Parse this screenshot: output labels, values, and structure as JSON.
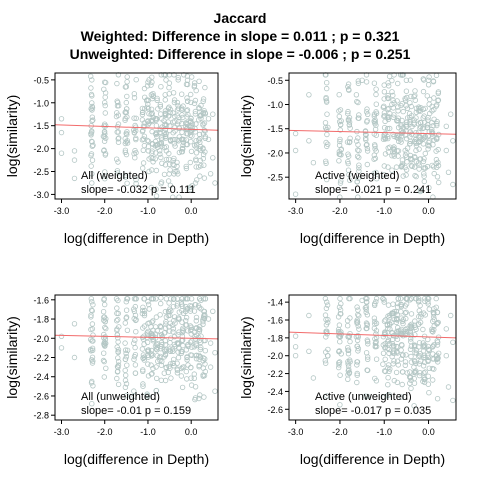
{
  "figure": {
    "title": "Jaccard",
    "subtitle_1": "Weighted: Difference in slope = 0.011 ; p = 0.321",
    "subtitle_2": "Unweighted: Difference in slope = -0.006 ; p = 0.251"
  },
  "colors": {
    "points": "#b3c6c4",
    "fit_line": "#f26b6b",
    "axes": "#000000"
  },
  "chart_data": [
    {
      "type": "scatter",
      "xlabel": "log(difference in Depth)",
      "ylabel": "log(similarity)",
      "xlim": [
        -3.15,
        0.62
      ],
      "ylim": [
        -3.1,
        -0.35
      ],
      "xticks": [
        -3.0,
        -2.0,
        -1.0,
        0.0
      ],
      "xtick_labels": [
        "-3.0",
        "-2.0",
        "-1.0",
        "0.0"
      ],
      "yticks": [
        -3.0,
        -2.5,
        -2.0,
        -1.5,
        -1.0,
        -0.5
      ],
      "ytick_labels": [
        "-3.0",
        "-2.5",
        "-2.0",
        "-1.5",
        "-1.0",
        "-0.5"
      ],
      "fit": {
        "intercept": -1.58,
        "slope": -0.032
      },
      "annotation": {
        "label": "All (weighted)",
        "stats": "slope= -0.032  p =  0.111"
      },
      "x_columns": [
        -2.3,
        -2.0,
        -1.7,
        -1.5,
        -1.3,
        -1.1,
        -1.0,
        -0.9,
        -0.8,
        -0.7,
        -0.6,
        -0.5,
        -0.4,
        -0.3,
        -0.2,
        -0.1,
        0.0,
        0.1,
        0.2,
        0.3
      ],
      "points": [
        {
          "x": -3.0,
          "y": -1.35
        },
        {
          "x": -3.0,
          "y": -1.65
        },
        {
          "x": -3.0,
          "y": -2.1
        },
        {
          "x": -2.7,
          "y": -2.05
        },
        {
          "x": -2.7,
          "y": -2.25
        },
        {
          "x": -2.7,
          "y": -2.65
        },
        {
          "x": -2.3,
          "y": -0.5
        },
        {
          "x": -2.3,
          "y": -0.85
        },
        {
          "x": -2.3,
          "y": -2.55
        },
        {
          "x": -2.3,
          "y": -2.75
        },
        {
          "x": -2.0,
          "y": -0.55
        },
        {
          "x": -2.0,
          "y": -2.6
        },
        {
          "x": -1.5,
          "y": -0.65
        },
        {
          "x": -1.0,
          "y": -0.55
        },
        {
          "x": -0.7,
          "y": -0.65
        },
        {
          "x": -0.3,
          "y": -0.5
        },
        {
          "x": 0.1,
          "y": -2.75
        },
        {
          "x": 0.2,
          "y": -2.6
        },
        {
          "x": 0.4,
          "y": -1.35
        },
        {
          "x": 0.4,
          "y": -1.8
        },
        {
          "x": 0.45,
          "y": -2.55
        },
        {
          "x": 0.5,
          "y": -1.25
        },
        {
          "x": 0.5,
          "y": -2.2
        },
        {
          "x": 0.55,
          "y": -2.75
        }
      ]
    },
    {
      "type": "scatter",
      "xlabel": "log(difference in Depth)",
      "ylabel": "log(similarity)",
      "xlim": [
        -3.15,
        0.62
      ],
      "ylim": [
        -2.95,
        -0.35
      ],
      "xticks": [
        -3.0,
        -2.0,
        -1.0,
        0.0
      ],
      "xtick_labels": [
        "-3.0",
        "-2.0",
        "-1.0",
        "0.0"
      ],
      "yticks": [
        -2.5,
        -2.0,
        -1.5,
        -1.0,
        -0.5
      ],
      "ytick_labels": [
        "-2.5",
        "-2.0",
        "-1.5",
        "-1.0",
        "-0.5"
      ],
      "fit": {
        "intercept": -1.6,
        "slope": -0.021
      },
      "annotation": {
        "label": "Active (weighted)",
        "stats": "slope= -0.021  p =  0.241"
      },
      "x_columns": [
        -2.3,
        -2.0,
        -1.8,
        -1.6,
        -1.4,
        -1.2,
        -1.0,
        -0.9,
        -0.8,
        -0.7,
        -0.6,
        -0.5,
        -0.4,
        -0.3,
        -0.2,
        -0.1,
        0.0,
        0.1,
        0.2
      ],
      "points": [
        {
          "x": -3.0,
          "y": -1.6
        },
        {
          "x": -3.0,
          "y": -1.95
        },
        {
          "x": -3.0,
          "y": -2.85
        },
        {
          "x": -2.7,
          "y": -0.8
        },
        {
          "x": -2.7,
          "y": -1.75
        },
        {
          "x": -2.6,
          "y": -2.2
        },
        {
          "x": -2.3,
          "y": -0.55
        },
        {
          "x": -2.3,
          "y": -2.55
        },
        {
          "x": -1.5,
          "y": -0.5
        },
        {
          "x": -1.0,
          "y": -0.6
        },
        {
          "x": -0.5,
          "y": -0.5
        },
        {
          "x": 0.0,
          "y": -0.5
        },
        {
          "x": 0.4,
          "y": -1.45
        },
        {
          "x": 0.4,
          "y": -1.95
        },
        {
          "x": 0.45,
          "y": -2.4
        },
        {
          "x": 0.5,
          "y": -1.2
        },
        {
          "x": 0.55,
          "y": -1.75
        },
        {
          "x": 0.55,
          "y": -2.65
        }
      ]
    },
    {
      "type": "scatter",
      "xlabel": "log(difference in Depth)",
      "ylabel": "log(similarity)",
      "xlim": [
        -3.15,
        0.62
      ],
      "ylim": [
        -2.85,
        -1.55
      ],
      "xticks": [
        -3.0,
        -2.0,
        -1.0,
        0.0
      ],
      "xtick_labels": [
        "-3.0",
        "-2.0",
        "-1.0",
        "0.0"
      ],
      "yticks": [
        -2.8,
        -2.6,
        -2.4,
        -2.2,
        -2.0,
        -1.8,
        -1.6
      ],
      "ytick_labels": [
        "-2.8",
        "-2.6",
        "-2.4",
        "-2.2",
        "-2.0",
        "-1.8",
        "-1.6"
      ],
      "fit": {
        "intercept": -2.0,
        "slope": -0.01
      },
      "annotation": {
        "label": "All (unweighted)",
        "stats": "slope= -0.01  p =  0.159"
      },
      "x_columns": [
        -2.3,
        -2.0,
        -1.7,
        -1.5,
        -1.3,
        -1.1,
        -1.0,
        -0.9,
        -0.8,
        -0.7,
        -0.6,
        -0.5,
        -0.4,
        -0.3,
        -0.2,
        -0.1,
        0.0,
        0.1,
        0.2,
        0.3
      ],
      "points": [
        {
          "x": -3.0,
          "y": -1.98
        },
        {
          "x": -3.0,
          "y": -2.1
        },
        {
          "x": -2.7,
          "y": -1.85
        },
        {
          "x": -2.7,
          "y": -2.2
        },
        {
          "x": -2.3,
          "y": -1.62
        },
        {
          "x": -2.3,
          "y": -2.45
        },
        {
          "x": -2.3,
          "y": -2.68
        },
        {
          "x": -2.0,
          "y": -1.65
        },
        {
          "x": -1.5,
          "y": -1.62
        },
        {
          "x": -1.0,
          "y": -2.6
        },
        {
          "x": -0.7,
          "y": -1.58
        },
        {
          "x": 0.1,
          "y": -2.62
        },
        {
          "x": 0.4,
          "y": -1.8
        },
        {
          "x": 0.45,
          "y": -2.05
        },
        {
          "x": 0.45,
          "y": -2.3
        },
        {
          "x": 0.5,
          "y": -1.72
        },
        {
          "x": 0.55,
          "y": -2.15
        },
        {
          "x": 0.55,
          "y": -2.55
        }
      ]
    },
    {
      "type": "scatter",
      "xlabel": "log(difference in Depth)",
      "ylabel": "log(similarity)",
      "xlim": [
        -3.15,
        0.62
      ],
      "ylim": [
        -2.72,
        -1.32
      ],
      "xticks": [
        -3.0,
        -2.0,
        -1.0,
        0.0
      ],
      "xtick_labels": [
        "-3.0",
        "-2.0",
        "-1.0",
        "0.0"
      ],
      "yticks": [
        -2.6,
        -2.4,
        -2.2,
        -2.0,
        -1.8,
        -1.6,
        -1.4
      ],
      "ytick_labels": [
        "-2.6",
        "-2.4",
        "-2.2",
        "-2.0",
        "-1.8",
        "-1.6",
        "-1.4"
      ],
      "fit": {
        "intercept": -1.79,
        "slope": -0.017
      },
      "annotation": {
        "label": "Active (unweighted)",
        "stats": "slope= -0.017  p =  0.035"
      },
      "x_columns": [
        -2.3,
        -2.0,
        -1.8,
        -1.6,
        -1.4,
        -1.2,
        -1.0,
        -0.9,
        -0.8,
        -0.7,
        -0.6,
        -0.5,
        -0.4,
        -0.3,
        -0.2,
        -0.1,
        0.0,
        0.1,
        0.2
      ],
      "points": [
        {
          "x": -3.0,
          "y": -1.78
        },
        {
          "x": -3.0,
          "y": -1.9
        },
        {
          "x": -3.0,
          "y": -2.0
        },
        {
          "x": -2.7,
          "y": -1.55
        },
        {
          "x": -2.7,
          "y": -1.95
        },
        {
          "x": -2.6,
          "y": -2.25
        },
        {
          "x": -2.3,
          "y": -1.4
        },
        {
          "x": -2.3,
          "y": -2.45
        },
        {
          "x": -2.0,
          "y": -2.55
        },
        {
          "x": -1.5,
          "y": -1.38
        },
        {
          "x": -1.0,
          "y": -1.4
        },
        {
          "x": 0.0,
          "y": -1.36
        },
        {
          "x": 0.4,
          "y": -1.7
        },
        {
          "x": 0.4,
          "y": -2.0
        },
        {
          "x": 0.45,
          "y": -2.35
        },
        {
          "x": 0.5,
          "y": -1.55
        },
        {
          "x": 0.55,
          "y": -1.85
        },
        {
          "x": 0.55,
          "y": -2.5
        }
      ]
    }
  ]
}
